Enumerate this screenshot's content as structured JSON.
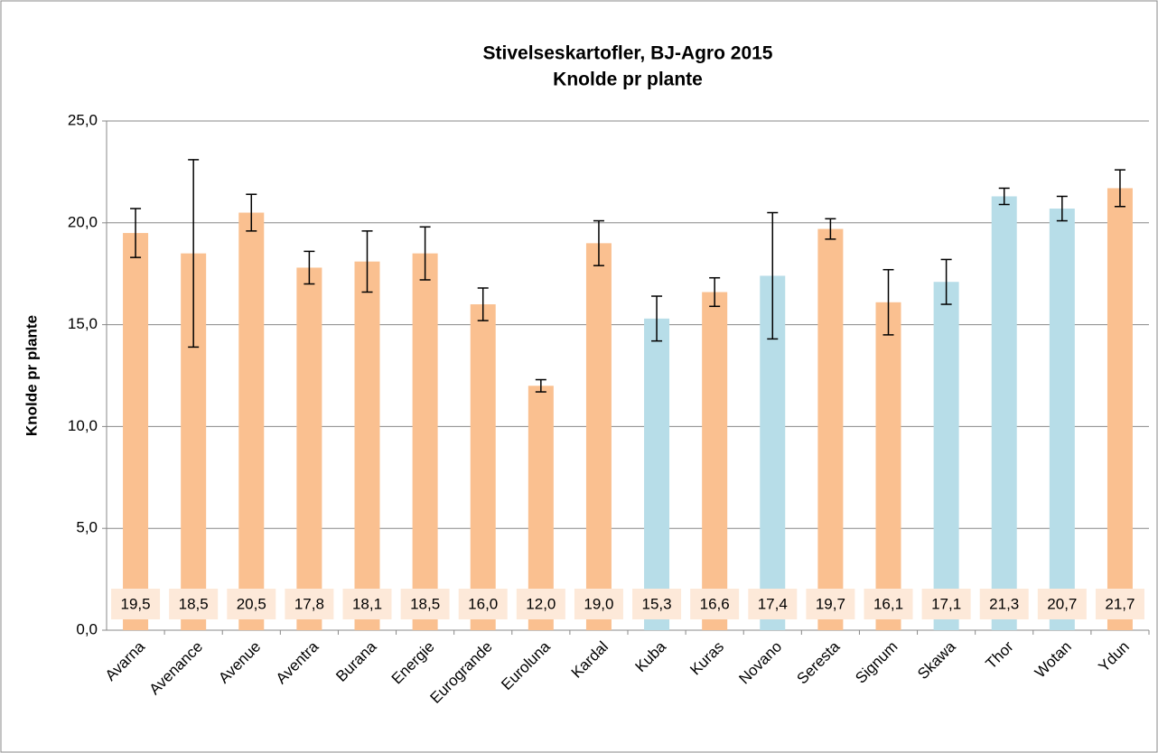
{
  "chart_data": {
    "type": "bar",
    "title": [
      "Stivelseskartofler, BJ-Agro 2015",
      "Knolde pr plante"
    ],
    "y_label": "Knolde pr plante",
    "categories": [
      "Avarna",
      "Avenance",
      "Avenue",
      "Aventra",
      "Burana",
      "Energie",
      "Eurogrande",
      "Euroluna",
      "Kardal",
      "Kuba",
      "Kuras",
      "Novano",
      "Seresta",
      "Signum",
      "Skawa",
      "Thor",
      "Wotan",
      "Ydun"
    ],
    "values": [
      19.5,
      18.5,
      20.5,
      17.8,
      18.1,
      18.5,
      16.0,
      12.0,
      19.0,
      15.3,
      16.6,
      17.4,
      19.7,
      16.1,
      17.1,
      21.3,
      20.7,
      21.7
    ],
    "value_labels": [
      "19,5",
      "18,5",
      "20,5",
      "17,8",
      "18,1",
      "18,5",
      "16,0",
      "12,0",
      "19,0",
      "15,3",
      "16,6",
      "17,4",
      "19,7",
      "16,1",
      "17,1",
      "21,3",
      "20,7",
      "21,7"
    ],
    "errors": [
      1.2,
      4.6,
      0.9,
      0.8,
      1.5,
      1.3,
      0.8,
      0.3,
      1.1,
      1.1,
      0.7,
      3.1,
      0.5,
      1.6,
      1.1,
      0.4,
      0.6,
      0.9
    ],
    "colors": [
      "#fac090",
      "#fac090",
      "#fac090",
      "#fac090",
      "#fac090",
      "#fac090",
      "#fac090",
      "#fac090",
      "#fac090",
      "#b7dde8",
      "#fac090",
      "#b7dde8",
      "#fac090",
      "#fac090",
      "#b7dde8",
      "#b7dde8",
      "#b7dde8",
      "#fac090"
    ],
    "ylim": [
      0,
      25
    ],
    "yticks": [
      {
        "value": 0,
        "label": "0,0"
      },
      {
        "value": 5,
        "label": "5,0"
      },
      {
        "value": 10,
        "label": "10,0"
      },
      {
        "value": 15,
        "label": "15,0"
      },
      {
        "value": 20,
        "label": "20,0"
      },
      {
        "value": 25,
        "label": "25,0"
      }
    ],
    "grid": true
  }
}
